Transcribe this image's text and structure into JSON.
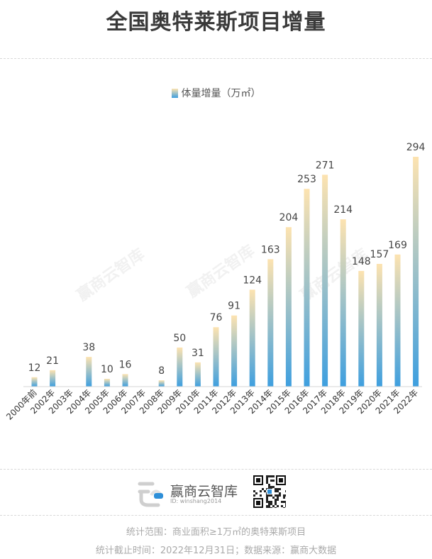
{
  "title": "全国奥特莱斯项目增量",
  "legend": {
    "label": "体量增量（万㎡）",
    "color_top": "#fde3b0",
    "color_bottom": "#3e9fdf"
  },
  "watermark": "赢商云智库",
  "brand": {
    "name": "赢商云智库",
    "id": "ID: winshang2014"
  },
  "footer": {
    "scope": "统计范围：商业面积≥1万㎡的奥特莱斯项目",
    "source": "统计截止时间：2022年12月31日；数据来源：赢商大数据"
  },
  "chart_data": {
    "type": "bar",
    "categories": [
      "2000年前",
      "2002年",
      "2003年",
      "2004年",
      "2005年",
      "2006年",
      "2007年",
      "2008年",
      "2009年",
      "2010年",
      "2011年",
      "2012年",
      "2013年",
      "2014年",
      "2015年",
      "2016年",
      "2017年",
      "2018年",
      "2019年",
      "2020年",
      "2021年",
      "2022年"
    ],
    "series": [
      {
        "name": "体量增量（万㎡）",
        "values": [
          12,
          21,
          null,
          38,
          10,
          16,
          null,
          8,
          50,
          31,
          76,
          91,
          124,
          163,
          204,
          253,
          271,
          214,
          148,
          157,
          169,
          294
        ]
      }
    ],
    "ylim": [
      0,
      294
    ],
    "grid": false,
    "legend_position": "top-center"
  }
}
